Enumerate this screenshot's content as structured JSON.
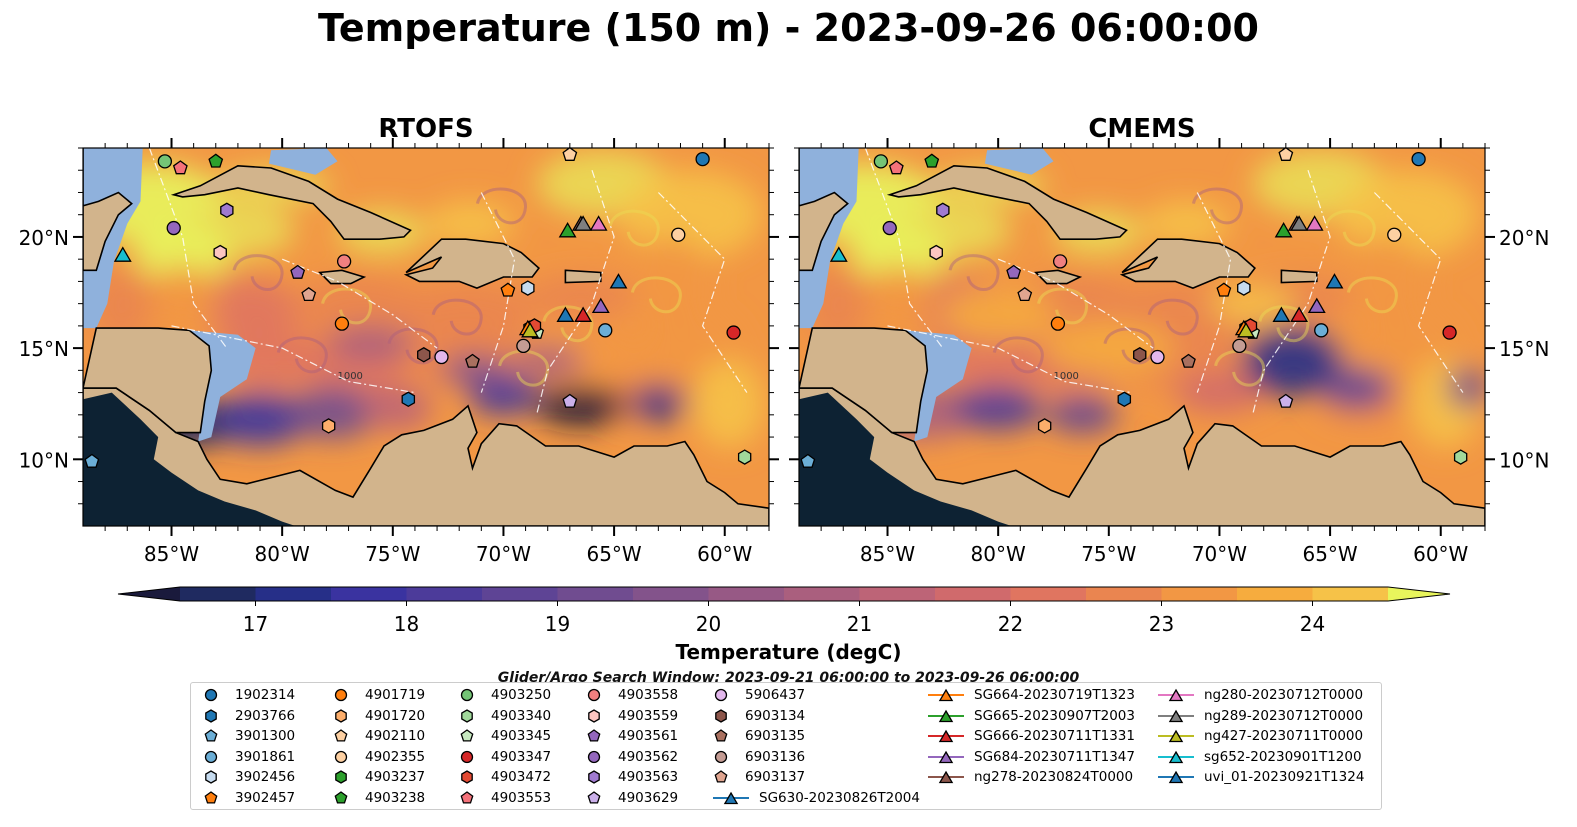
{
  "figure": {
    "title": "Temperature (150 m) - 2023-09-26 06:00:00",
    "panels": [
      "RTOFS",
      "CMEMS"
    ],
    "colorbar_label": "Temperature (degC)",
    "colorbar_ticks": [
      "17",
      "18",
      "19",
      "20",
      "21",
      "22",
      "23",
      "24"
    ],
    "lat_ticks": [
      "10°N",
      "15°N",
      "20°N"
    ],
    "lon_ticks": [
      "85°W",
      "80°W",
      "75°W",
      "70°W",
      "65°W",
      "60°W"
    ],
    "contour_label": "1000",
    "legend_title": "Glider/Argo Search Window: 2023-09-21 06:00:00 to 2023-09-26 06:00:00"
  },
  "chart_data": {
    "type": "heatmap",
    "title": "Temperature (150 m) - 2023-09-26 06:00:00",
    "panels": [
      "RTOFS",
      "CMEMS"
    ],
    "extent": {
      "lon": [
        -89,
        -58
      ],
      "lat": [
        7,
        24
      ]
    },
    "colorbar": {
      "label": "Temperature (degC)",
      "range": [
        16.5,
        24.5
      ],
      "step": 0.5,
      "extend": "both",
      "colors": [
        "#1a1a3c",
        "#1f2a60",
        "#262f88",
        "#3a33a0",
        "#4c3b9a",
        "#5e4495",
        "#704c90",
        "#83538b",
        "#975985",
        "#aa5f7e",
        "#bd6477",
        "#d06a6c",
        "#e07560",
        "#ea8550",
        "#f29744",
        "#f6ac3e",
        "#f6c248",
        "#eadc55",
        "#e8f55c"
      ]
    },
    "axes": {
      "lat_ticks": [
        10,
        15,
        20
      ],
      "lon_ticks": [
        -85,
        -80,
        -75,
        -70,
        -65,
        -60
      ]
    },
    "argo_floats": [
      {
        "id": "1902314",
        "marker": "circle",
        "color": "#1f77b4",
        "lon": -61.0,
        "lat": 23.5
      },
      {
        "id": "2903766",
        "marker": "hexagon",
        "color": "#1f77b4",
        "lon": -74.3,
        "lat": 12.7
      },
      {
        "id": "3901300",
        "marker": "pentagon",
        "color": "#6baed6",
        "lon": -88.6,
        "lat": 9.9
      },
      {
        "id": "3901861",
        "marker": "circle",
        "color": "#6baed6",
        "lon": -65.4,
        "lat": 15.8
      },
      {
        "id": "3902456",
        "marker": "hexagon",
        "color": "#c6dbef",
        "lon": -68.9,
        "lat": 17.7
      },
      {
        "id": "3902457",
        "marker": "pentagon",
        "color": "#ff7f0e",
        "lon": -69.8,
        "lat": 17.6
      },
      {
        "id": "4901719",
        "marker": "circle",
        "color": "#ff7f0e",
        "lon": -77.3,
        "lat": 16.1
      },
      {
        "id": "4901720",
        "marker": "hexagon",
        "color": "#fdae6b",
        "lon": -77.9,
        "lat": 11.5
      },
      {
        "id": "4902110",
        "marker": "pentagon",
        "color": "#fdd0a2",
        "lon": -67.0,
        "lat": 23.7
      },
      {
        "id": "4902355",
        "marker": "circle",
        "color": "#fdd0a2",
        "lon": -62.1,
        "lat": 20.1
      },
      {
        "id": "4903237",
        "marker": "hexagon",
        "color": "#2ca02c",
        "lon": -68.8,
        "lat": 15.9
      },
      {
        "id": "4903238",
        "marker": "pentagon",
        "color": "#2ca02c",
        "lon": -83.0,
        "lat": 23.4
      },
      {
        "id": "4903250",
        "marker": "circle",
        "color": "#74c476",
        "lon": -85.3,
        "lat": 23.4
      },
      {
        "id": "4903340",
        "marker": "hexagon",
        "color": "#a1d99b",
        "lon": -59.1,
        "lat": 10.1
      },
      {
        "id": "4903345",
        "marker": "pentagon",
        "color": "#c7e9c0",
        "lon": -68.5,
        "lat": 15.7
      },
      {
        "id": "4903347",
        "marker": "circle",
        "color": "#d62728",
        "lon": -59.6,
        "lat": 15.7
      },
      {
        "id": "4903472",
        "marker": "hexagon",
        "color": "#e34a33",
        "lon": -68.6,
        "lat": 16.0
      },
      {
        "id": "4903553",
        "marker": "pentagon",
        "color": "#f4727a",
        "lon": -84.6,
        "lat": 23.1
      },
      {
        "id": "4903558",
        "marker": "circle",
        "color": "#f08080",
        "lon": -77.2,
        "lat": 18.9
      },
      {
        "id": "4903559",
        "marker": "hexagon",
        "color": "#fcc5c0",
        "lon": -82.8,
        "lat": 19.3
      },
      {
        "id": "4903561",
        "marker": "pentagon",
        "color": "#9467bd",
        "lon": -79.3,
        "lat": 18.4
      },
      {
        "id": "4903562",
        "marker": "circle",
        "color": "#9467bd",
        "lon": -84.9,
        "lat": 20.4
      },
      {
        "id": "4903563",
        "marker": "hexagon",
        "color": "#a07ad0",
        "lon": -82.5,
        "lat": 21.2
      },
      {
        "id": "4903629",
        "marker": "pentagon",
        "color": "#cbb0ea",
        "lon": -67.0,
        "lat": 12.6
      },
      {
        "id": "5906437",
        "marker": "circle",
        "color": "#e2b7ec",
        "lon": -72.8,
        "lat": 14.6
      },
      {
        "id": "6903134",
        "marker": "hexagon",
        "color": "#8c564b",
        "lon": -73.6,
        "lat": 14.7
      },
      {
        "id": "6903135",
        "marker": "pentagon",
        "color": "#a9705f",
        "lon": -71.4,
        "lat": 14.4
      },
      {
        "id": "6903136",
        "marker": "circle",
        "color": "#c49c94",
        "lon": -69.1,
        "lat": 15.1
      },
      {
        "id": "6903137",
        "marker": "pentagon",
        "color": "#e0a590",
        "lon": -78.8,
        "lat": 17.4
      }
    ],
    "gliders": [
      {
        "id": "SG630-20230826T2004",
        "color": "#1f77b4",
        "lon": -67.2,
        "lat": 16.5
      },
      {
        "id": "SG664-20230719T1323",
        "color": "#ff7f0e",
        "lon": -68.9,
        "lat": 15.9
      },
      {
        "id": "SG665-20230907T2003",
        "color": "#2ca02c",
        "lon": -67.1,
        "lat": 20.3
      },
      {
        "id": "SG666-20230711T1331",
        "color": "#d62728",
        "lon": -66.4,
        "lat": 16.5
      },
      {
        "id": "SG684-20230711T1347",
        "color": "#9467bd",
        "lon": -65.6,
        "lat": 16.9
      },
      {
        "id": "ng278-20230824T0000",
        "color": "#8c564b",
        "lon": -66.5,
        "lat": 20.6
      },
      {
        "id": "ng280-20230712T0000",
        "color": "#e377c2",
        "lon": -65.7,
        "lat": 20.6
      },
      {
        "id": "ng289-20230712T0000",
        "color": "#7f7f7f",
        "lon": -66.4,
        "lat": 20.6
      },
      {
        "id": "ng427-20230711T0000",
        "color": "#bcbd22",
        "lon": -68.8,
        "lat": 15.8
      },
      {
        "id": "sg652-20230901T1200",
        "color": "#17becf",
        "lon": -87.2,
        "lat": 19.2
      },
      {
        "id": "uvi_01-20230921T1324",
        "color": "#1f77b4",
        "lon": -64.8,
        "lat": 18.0
      }
    ]
  }
}
